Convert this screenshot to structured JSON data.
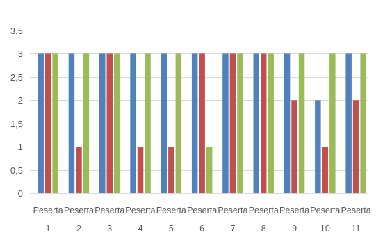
{
  "chart_data": {
    "type": "bar",
    "categories": [
      [
        "Peserta",
        "1"
      ],
      [
        "Peserta",
        "2"
      ],
      [
        "Peserta",
        "3"
      ],
      [
        "Peserta",
        "4"
      ],
      [
        "Peserta",
        "5"
      ],
      [
        "Peserta",
        "6"
      ],
      [
        "Peserta",
        "7"
      ],
      [
        "Peserta",
        "8"
      ],
      [
        "Peserta",
        "9"
      ],
      [
        "Peserta",
        "10"
      ],
      [
        "Peserta",
        "11"
      ]
    ],
    "series": [
      {
        "color": "#4f81bd",
        "values": [
          3,
          3,
          3,
          3,
          3,
          3,
          3,
          3,
          3,
          2,
          3
        ]
      },
      {
        "color": "#c0504d",
        "values": [
          3,
          1,
          3,
          1,
          1,
          3,
          3,
          3,
          2,
          1,
          2
        ]
      },
      {
        "color": "#9bbb59",
        "values": [
          3,
          3,
          3,
          3,
          3,
          1,
          3,
          3,
          3,
          3,
          3
        ]
      }
    ],
    "yticks": [
      "0",
      "0,5",
      "1",
      "1,5",
      "2",
      "2,5",
      "3",
      "3,5"
    ],
    "ylim": [
      0,
      3.5
    ],
    "grid": true,
    "gridline_color": "#d9d9d9",
    "legend": "none"
  }
}
